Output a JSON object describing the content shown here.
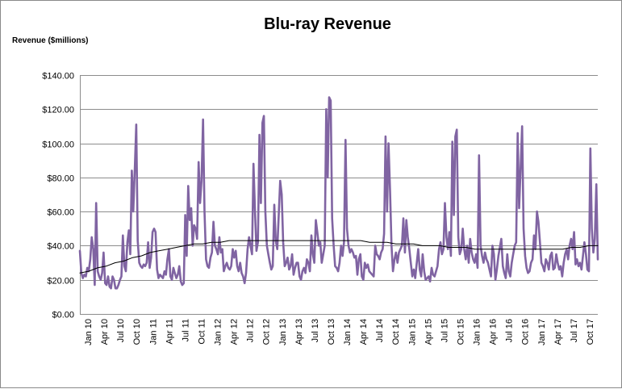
{
  "chart_data": {
    "type": "line",
    "title": "Blu-ray Revenue",
    "ylabel": "Revenue ($millions)",
    "xlabel": "",
    "ylim": [
      0,
      140
    ],
    "y_ticks": [
      "$0.00",
      "$20.00",
      "$40.00",
      "$60.00",
      "$80.00",
      "$100.00",
      "$120.00",
      "$140.00"
    ],
    "x_tick_labels": [
      "Jan 10",
      "Apr 10",
      "Jul 10",
      "Oct 10",
      "Jan 11",
      "Apr 11",
      "Jul 11",
      "Oct 11",
      "Jan 12",
      "Apr 12",
      "Jul 12",
      "Oct 12",
      "Jan 13",
      "Apr 13",
      "Jul 13",
      "Oct 13",
      "Jan 14",
      "Apr 14",
      "Jul 14",
      "Oct 14",
      "Jan 15",
      "Apr 15",
      "Jul 15",
      "Oct 15",
      "Jan 16",
      "Apr 16",
      "Jul 16",
      "Oct 16",
      "Jan 17",
      "Apr 17",
      "Jul 17",
      "Oct 17"
    ],
    "grid": true,
    "legend": "none",
    "colors": {
      "series": "#8064a2",
      "trend": "#000000",
      "grid": "#8c8c8c"
    },
    "series": [
      {
        "kind": "weekly-revenue",
        "x_start": "Jan 10",
        "x_step": "week",
        "values": [
          37,
          24,
          21,
          23,
          22,
          27,
          25,
          32,
          45,
          38,
          17,
          65,
          25,
          22,
          20,
          24,
          36,
          18,
          17,
          22,
          16,
          15,
          22,
          20,
          15,
          15,
          17,
          20,
          22,
          46,
          28,
          25,
          42,
          49,
          35,
          84,
          60,
          85,
          111,
          43,
          30,
          28,
          27,
          29,
          28,
          30,
          42,
          27,
          33,
          48,
          50,
          48,
          26,
          21,
          23,
          22,
          21,
          25,
          23,
          32,
          38,
          22,
          20,
          27,
          24,
          21,
          23,
          28,
          19,
          17,
          18,
          58,
          34,
          75,
          55,
          62,
          40,
          52,
          50,
          44,
          89,
          65,
          78,
          114,
          60,
          32,
          28,
          27,
          33,
          36,
          54,
          40,
          38,
          35,
          45,
          36,
          38,
          25,
          28,
          30,
          27,
          26,
          28,
          38,
          33,
          37,
          28,
          25,
          30,
          24,
          22,
          18,
          24,
          38,
          45,
          40,
          35,
          88,
          60,
          37,
          42,
          105,
          65,
          112,
          116,
          60,
          40,
          35,
          30,
          26,
          28,
          64,
          43,
          38,
          58,
          78,
          70,
          42,
          28,
          30,
          33,
          26,
          28,
          35,
          23,
          27,
          30,
          30,
          22,
          20,
          25,
          27,
          24,
          32,
          30,
          25,
          46,
          35,
          30,
          55,
          48,
          40,
          42,
          30,
          35,
          40,
          120,
          80,
          127,
          125,
          56,
          40,
          28,
          27,
          25,
          30,
          40,
          34,
          42,
          102,
          50,
          40,
          36,
          38,
          36,
          33,
          34,
          23,
          32,
          35,
          22,
          20,
          30,
          27,
          29,
          25,
          24,
          23,
          22,
          40,
          35,
          34,
          32,
          36,
          38,
          47,
          104,
          60,
          100,
          72,
          40,
          25,
          32,
          36,
          30,
          36,
          38,
          40,
          56,
          36,
          55,
          45,
          38,
          30,
          22,
          26,
          21,
          30,
          38,
          26,
          22,
          35,
          25,
          20,
          21,
          22,
          19,
          27,
          23,
          22,
          25,
          28,
          38,
          42,
          35,
          38,
          65,
          45,
          38,
          48,
          34,
          101,
          58,
          104,
          108,
          45,
          35,
          38,
          50,
          38,
          32,
          40,
          30,
          44,
          36,
          32,
          30,
          35,
          27,
          93,
          40,
          34,
          30,
          36,
          32,
          30,
          26,
          22,
          40,
          35,
          20,
          26,
          34,
          39,
          44,
          28,
          24,
          21,
          35,
          25,
          22,
          30,
          35,
          40,
          42,
          106,
          62,
          85,
          110,
          50,
          34,
          27,
          24,
          25,
          30,
          32,
          46,
          38,
          60,
          54,
          42,
          30,
          28,
          25,
          32,
          30,
          26,
          34,
          36,
          26,
          27,
          35,
          30,
          26,
          28,
          22,
          30,
          35,
          38,
          32,
          40,
          44,
          38,
          48,
          29,
          32,
          28,
          30,
          26,
          34,
          42,
          35,
          26,
          25,
          97,
          50,
          36,
          44,
          76,
          32
        ]
      },
      {
        "kind": "trendline",
        "values": [
          24,
          25,
          27,
          28,
          30,
          31,
          33,
          34,
          36,
          37,
          38,
          39,
          40,
          41,
          41,
          42,
          42,
          43,
          43,
          43,
          43,
          43,
          43,
          43,
          43,
          43,
          43,
          43,
          43,
          43,
          43,
          43,
          43,
          42,
          42,
          42,
          41,
          41,
          41,
          40,
          40,
          40,
          39,
          39,
          39,
          38,
          38,
          38,
          38,
          38,
          38,
          38,
          38,
          38,
          38,
          38,
          39,
          39,
          40,
          40
        ]
      }
    ]
  }
}
